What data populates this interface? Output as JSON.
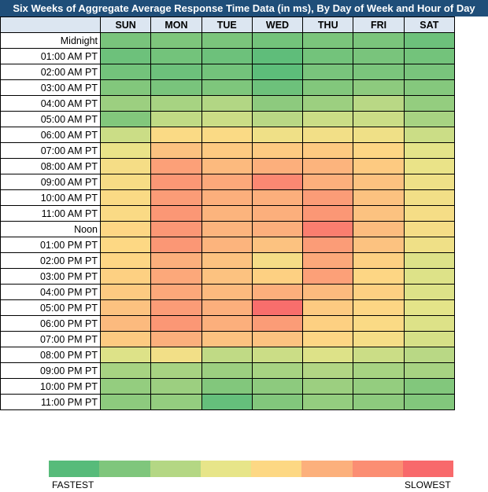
{
  "title": "Six Weeks of Aggregate Average Response Time Data (in ms), By Day of Week and Hour of Day",
  "chart_data": {
    "type": "heatmap",
    "title": "Six Weeks of Aggregate Average Response Time Data (in ms), By Day of Week and Hour of Day",
    "columns": [
      "SUN",
      "MON",
      "TUE",
      "WED",
      "THU",
      "FRI",
      "SAT"
    ],
    "rows": [
      "Midnight",
      "01:00 AM PT",
      "02:00 AM PT",
      "03:00 AM PT",
      "04:00 AM PT",
      "05:00 AM PT",
      "06:00 AM PT",
      "07:00 AM PT",
      "08:00 AM PT",
      "09:00 AM PT",
      "10:00 AM PT",
      "11:00 AM PT",
      "Noon",
      "01:00 PM PT",
      "02:00 PM PT",
      "03:00 PM PT",
      "04:00 PM PT",
      "05:00 PM PT",
      "06:00 PM PT",
      "07:00 PM PT",
      "08:00 PM PT",
      "09:00 PM PT",
      "10:00 PM PT",
      "11:00 PM PT"
    ],
    "scale": "0 = fastest, 1 = slowest",
    "values": [
      [
        0.12,
        0.14,
        0.13,
        0.1,
        0.13,
        0.13,
        0.08
      ],
      [
        0.08,
        0.1,
        0.08,
        0.03,
        0.1,
        0.12,
        0.1
      ],
      [
        0.1,
        0.08,
        0.1,
        0.02,
        0.12,
        0.13,
        0.12
      ],
      [
        0.15,
        0.12,
        0.14,
        0.08,
        0.15,
        0.18,
        0.16
      ],
      [
        0.22,
        0.25,
        0.28,
        0.18,
        0.22,
        0.3,
        0.2
      ],
      [
        0.15,
        0.32,
        0.35,
        0.3,
        0.35,
        0.35,
        0.25
      ],
      [
        0.35,
        0.55,
        0.55,
        0.48,
        0.5,
        0.48,
        0.35
      ],
      [
        0.45,
        0.65,
        0.62,
        0.62,
        0.62,
        0.58,
        0.42
      ],
      [
        0.52,
        0.78,
        0.68,
        0.72,
        0.7,
        0.62,
        0.45
      ],
      [
        0.53,
        0.82,
        0.75,
        0.88,
        0.72,
        0.65,
        0.48
      ],
      [
        0.55,
        0.8,
        0.72,
        0.72,
        0.8,
        0.65,
        0.5
      ],
      [
        0.55,
        0.82,
        0.7,
        0.72,
        0.82,
        0.65,
        0.52
      ],
      [
        0.58,
        0.82,
        0.7,
        0.72,
        0.92,
        0.67,
        0.52
      ],
      [
        0.57,
        0.82,
        0.7,
        0.65,
        0.8,
        0.65,
        0.48
      ],
      [
        0.58,
        0.72,
        0.65,
        0.52,
        0.75,
        0.6,
        0.4
      ],
      [
        0.6,
        0.75,
        0.65,
        0.6,
        0.78,
        0.58,
        0.4
      ],
      [
        0.62,
        0.75,
        0.68,
        0.72,
        0.68,
        0.6,
        0.4
      ],
      [
        0.65,
        0.8,
        0.72,
        0.98,
        0.62,
        0.58,
        0.42
      ],
      [
        0.68,
        0.82,
        0.72,
        0.8,
        0.6,
        0.55,
        0.4
      ],
      [
        0.62,
        0.72,
        0.65,
        0.65,
        0.58,
        0.52,
        0.38
      ],
      [
        0.4,
        0.5,
        0.32,
        0.35,
        0.4,
        0.35,
        0.3
      ],
      [
        0.25,
        0.25,
        0.22,
        0.25,
        0.28,
        0.25,
        0.25
      ],
      [
        0.2,
        0.22,
        0.15,
        0.18,
        0.22,
        0.2,
        0.15
      ],
      [
        0.18,
        0.2,
        0.05,
        0.15,
        0.2,
        0.18,
        0.15
      ]
    ],
    "legend": {
      "colors": [
        "#57bb7a",
        "#7fc67c",
        "#b4d784",
        "#e7e589",
        "#fdd884",
        "#fcb07c",
        "#fb8e73",
        "#f8696b"
      ],
      "low_label": "FASTEST",
      "high_label": "SLOWEST"
    }
  }
}
